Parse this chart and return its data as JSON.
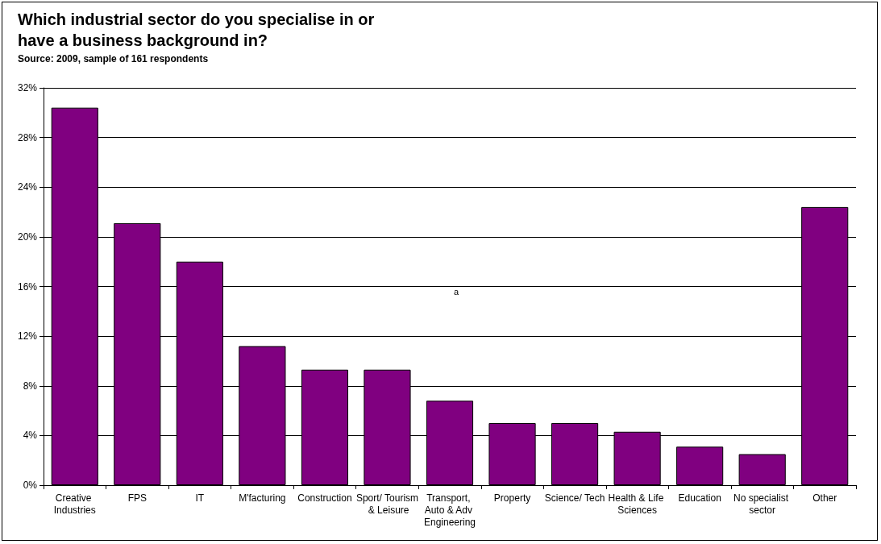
{
  "chart_data": {
    "type": "bar",
    "title": "Which industrial sector do you specialise in or\nhave a business background in?",
    "subtitle": "Source: 2009, sample of 161 respondents",
    "categories": [
      "Creative Industries",
      "FPS",
      "IT",
      "M'facturing",
      "Construction",
      "Sport/ Tourism & Leisure",
      "Transport, Auto & Adv Engineering",
      "Property",
      "Science/ Tech",
      "Health & Life Sciences",
      "Education",
      "No specialist sector",
      "Other"
    ],
    "values": [
      30.4,
      21.1,
      18.0,
      11.2,
      9.3,
      9.3,
      6.8,
      5.0,
      5.0,
      4.3,
      3.1,
      2.5,
      22.4
    ],
    "color": "#800080",
    "ylim": [
      0,
      32
    ],
    "yticks": [
      {
        "value": 0,
        "label": "0%"
      },
      {
        "value": 4,
        "label": "4%"
      },
      {
        "value": 8,
        "label": "8%"
      },
      {
        "value": 12,
        "label": "12%"
      },
      {
        "value": 16,
        "label": "16%"
      },
      {
        "value": 20,
        "label": "20%"
      },
      {
        "value": 24,
        "label": "24%"
      },
      {
        "value": 28,
        "label": "28%"
      },
      {
        "value": 32,
        "label": "32%"
      }
    ],
    "grid": "y",
    "annotations": [
      "a"
    ]
  }
}
